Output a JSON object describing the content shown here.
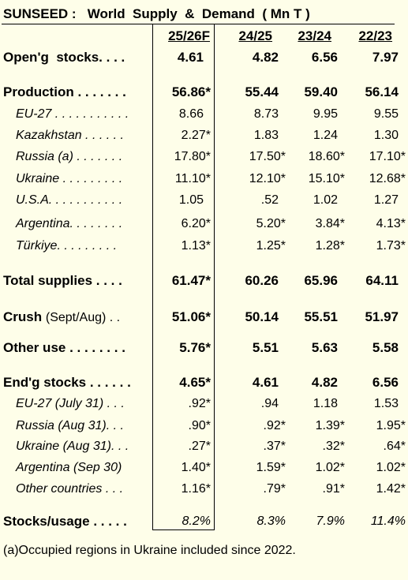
{
  "title": "SUNSEED :   World  Supply  &  Demand  ( Mn T )",
  "columns": [
    "25/26F",
    "24/25",
    "23/24",
    "22/23"
  ],
  "rows": [
    {
      "label": "Open'g  stocks. . . .",
      "values": [
        "4.61",
        "4.82",
        "6.56",
        "7.97"
      ]
    },
    {
      "label": "Production . . . . . . .",
      "values": [
        "56.86*",
        "55.44",
        "59.40",
        "56.14"
      ]
    },
    {
      "label": "EU-27 . . . . . . . . . . .",
      "values": [
        "8.66",
        "8.73",
        "9.95",
        "9.55"
      ]
    },
    {
      "label": "Kazakhstan . . . . . .",
      "values": [
        "2.27*",
        "1.83",
        "1.24",
        "1.30"
      ]
    },
    {
      "label": "Russia (a) . . . . . . .",
      "values": [
        "17.80*",
        "17.50*",
        "18.60*",
        "17.10*"
      ]
    },
    {
      "label": "Ukraine . . . . . . . . .",
      "values": [
        "11.10*",
        "12.10*",
        "15.10*",
        "12.68*"
      ]
    },
    {
      "label": "U.S.A. . . . . . . . . . .",
      "values": [
        "1.05",
        ".52",
        "1.02",
        "1.27"
      ]
    },
    {
      "label": "Argentina. . . . . . . .",
      "values": [
        "6.20*",
        "5.20*",
        "3.84*",
        "4.13*"
      ]
    },
    {
      "label": "Türkiye. . . . . . . . .",
      "values": [
        "1.13*",
        "1.25*",
        "1.28*",
        "1.73*"
      ]
    },
    {
      "label": "Total supplies . . . .",
      "values": [
        "61.47*",
        "60.26",
        "65.96",
        "64.11"
      ]
    },
    {
      "label": "Crush",
      "note": "(Sept/Aug) . .",
      "values": [
        "51.06*",
        "50.14",
        "55.51",
        "51.97"
      ]
    },
    {
      "label": "Other use . . . . . . . .",
      "values": [
        "5.76*",
        "5.51",
        "5.63",
        "5.58"
      ]
    },
    {
      "label": "End'g stocks . . . . . .",
      "values": [
        "4.65*",
        "4.61",
        "4.82",
        "6.56"
      ]
    },
    {
      "label": "EU-27 (July 31) . . .",
      "values": [
        ".92*",
        ".94",
        "1.18",
        "1.53"
      ]
    },
    {
      "label": "Russia (Aug 31). . .",
      "values": [
        ".90*",
        ".92*",
        "1.39*",
        "1.95*"
      ]
    },
    {
      "label": "Ukraine (Aug 31). . .",
      "values": [
        ".27*",
        ".37*",
        ".32*",
        ".64*"
      ]
    },
    {
      "label": "Argentina (Sep 30)",
      "values": [
        "1.40*",
        "1.59*",
        "1.02*",
        "1.02*"
      ]
    },
    {
      "label": "Other countries . . .",
      "values": [
        "1.16*",
        ".79*",
        ".91*",
        "1.42*"
      ]
    },
    {
      "label": "Stocks/usage . . . . .",
      "values": [
        "8.2%",
        "8.3%",
        "7.9%",
        "11.4%"
      ]
    }
  ],
  "footnote": "(a)Occupied regions in Ukraine included since 2022."
}
